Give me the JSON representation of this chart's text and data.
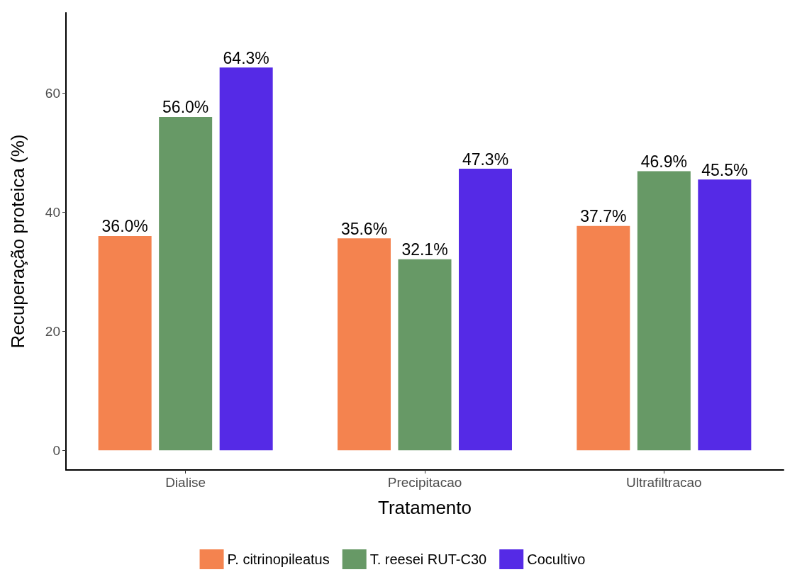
{
  "chart_data": {
    "type": "bar",
    "xlabel": "Tratamento",
    "ylabel": "Recuperação proteica (%)",
    "categories": [
      "Dialise",
      "Precipitacao",
      "Ultrafiltracao"
    ],
    "series": [
      {
        "name": "P. citrinopileatus",
        "color": "#f4834f",
        "values": [
          36.0,
          35.6,
          37.7
        ],
        "value_labels": [
          "36.0%",
          "35.6%",
          "37.7%"
        ]
      },
      {
        "name": "T. reesei RUT-C30",
        "color": "#679966",
        "values": [
          56.0,
          32.1,
          46.9
        ],
        "value_labels": [
          "56.0%",
          "32.1%",
          "46.9%"
        ]
      },
      {
        "name": "Cocultivo",
        "color": "#552ae6",
        "values": [
          64.3,
          47.3,
          45.5
        ],
        "value_labels": [
          "64.3%",
          "47.3%",
          "45.5%"
        ]
      }
    ],
    "ylim": [
      -3.3,
      73.5
    ],
    "yticks": [
      0,
      20,
      40,
      60
    ],
    "grid": false,
    "legend": "bottom"
  }
}
